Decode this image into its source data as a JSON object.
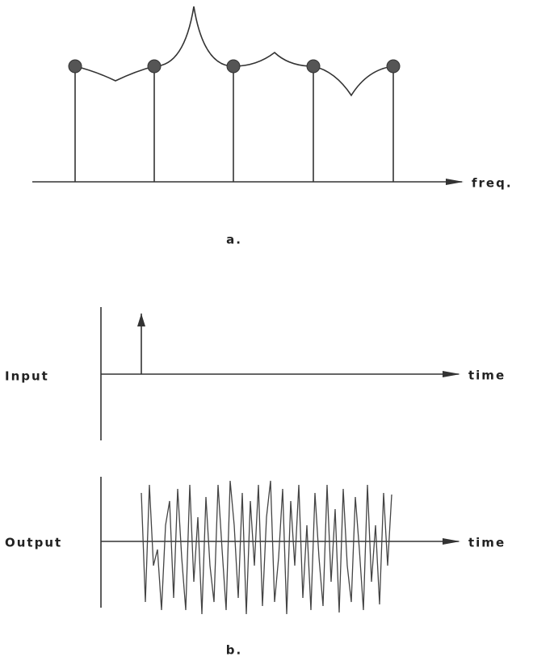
{
  "figure_a": {
    "axis_label": "freq.",
    "caption": "a."
  },
  "figure_b": {
    "input_label": "Input",
    "input_axis_label": "time",
    "output_label": "Output",
    "output_axis_label": "time",
    "caption": "b."
  }
}
